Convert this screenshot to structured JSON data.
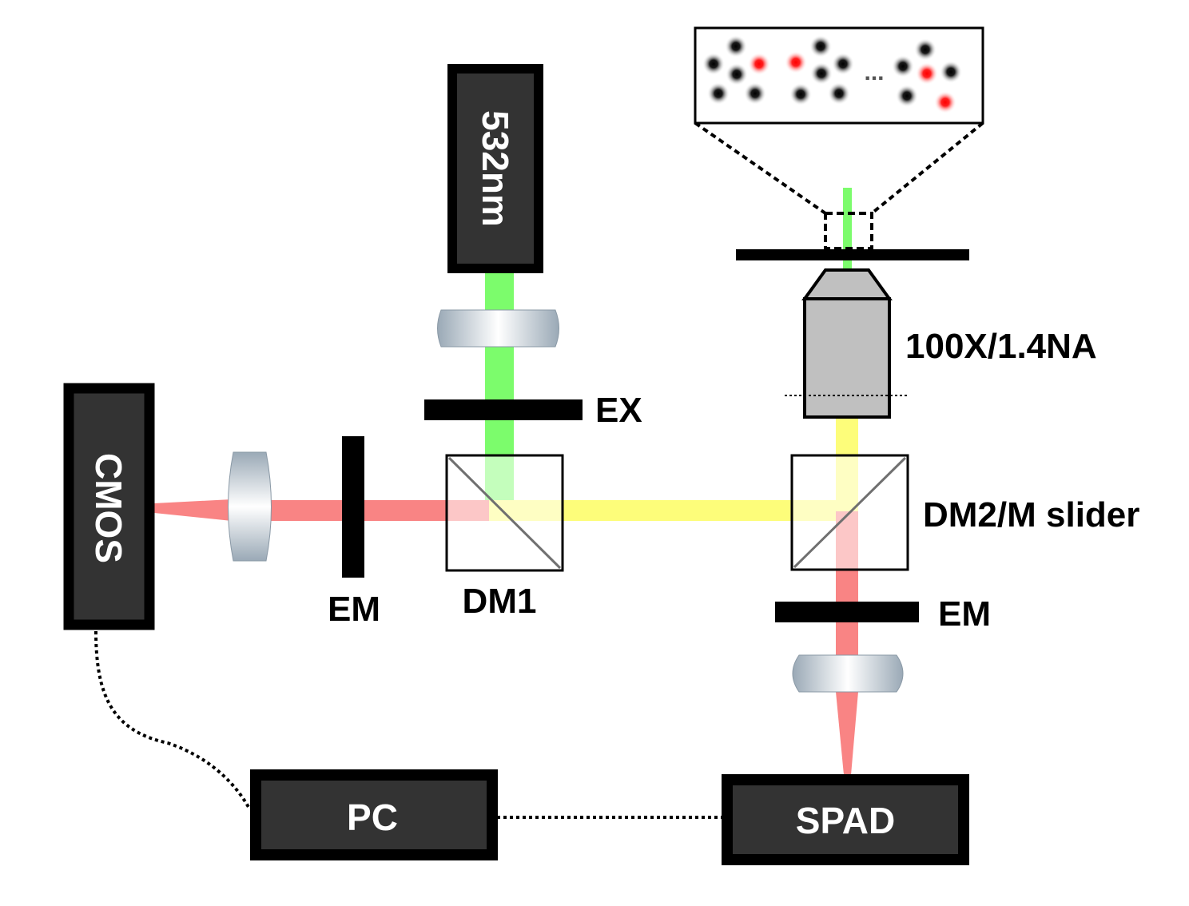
{
  "devices": {
    "laser": "532nm",
    "cmos": "CMOS",
    "pc": "PC",
    "spad": "SPAD"
  },
  "labels": {
    "objective": "100X/1.4NA",
    "ex_filter": "EX",
    "em_filter_left": "EM",
    "dm1": "DM1",
    "dm2": "DM2/M slider",
    "em_filter_right": "EM",
    "ellipsis": "..."
  },
  "colors": {
    "green_beam": "#7cfc6c",
    "yellow_beam": "#fdfd7a",
    "red_beam": "#f98484",
    "device_fill": "#333333",
    "objective_fill": "#c0c0c0"
  }
}
